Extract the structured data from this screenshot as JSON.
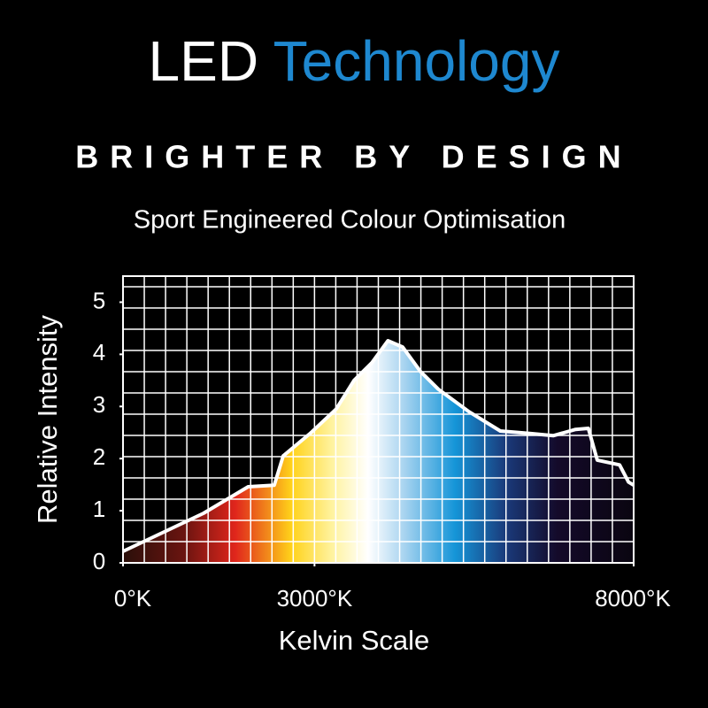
{
  "chart_data": {
    "type": "area-line",
    "title": [
      "LED",
      "Technology"
    ],
    "subtitle": "BRIGHTER BY DESIGN",
    "tagline": "Sport Engineered Colour Optimisation",
    "xlabel": "Kelvin Scale",
    "ylabel": "Relative Intensity",
    "xlim": [
      0,
      8000
    ],
    "ylim": [
      0,
      5.5
    ],
    "xticks": [
      {
        "value": 0,
        "label": "0°K"
      },
      {
        "value": 3000,
        "label": "3000°K"
      },
      {
        "value": 8000,
        "label": "8000°K"
      }
    ],
    "yticks": [
      0,
      1,
      2,
      3,
      4,
      5
    ],
    "grid": true,
    "color": "#ffffff",
    "x": [
      0,
      1260,
      1960,
      2370,
      2510,
      2930,
      3340,
      3620,
      3900,
      4150,
      4380,
      4660,
      4940,
      5420,
      5910,
      6390,
      6740,
      7090,
      7290,
      7430,
      7780,
      7920,
      8000
    ],
    "values": [
      0.22,
      0.95,
      1.46,
      1.49,
      2.05,
      2.48,
      2.95,
      3.5,
      3.84,
      4.26,
      4.14,
      3.67,
      3.33,
      2.9,
      2.53,
      2.48,
      2.44,
      2.56,
      2.58,
      1.97,
      1.88,
      1.55,
      1.49
    ]
  }
}
